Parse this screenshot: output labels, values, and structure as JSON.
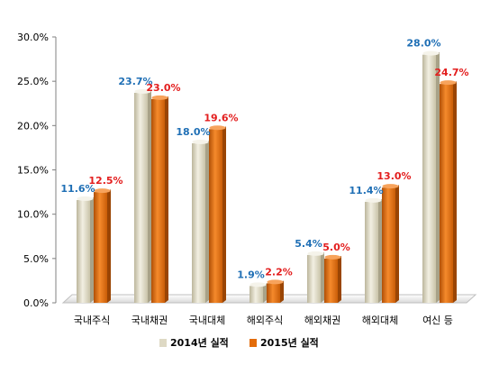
{
  "chart_data": {
    "type": "bar",
    "categories": [
      "국내주식",
      "국내채권",
      "국내대체",
      "해외주식",
      "해외채권",
      "해외대체",
      "여신 등"
    ],
    "series": [
      {
        "name": "2014년 실적",
        "values": [
          11.6,
          23.7,
          18.0,
          1.9,
          5.4,
          11.4,
          28.0
        ],
        "labels": [
          "11.6%",
          "23.7%",
          "18.0%",
          "1.9%",
          "5.4%",
          "11.4%",
          "28.0%"
        ],
        "color": "#ded9c4",
        "label_color": "#1f6fb5"
      },
      {
        "name": "2015년 실적",
        "values": [
          12.5,
          23.0,
          19.6,
          2.2,
          5.0,
          13.0,
          24.7
        ],
        "labels": [
          "12.5%",
          "23.0%",
          "19.6%",
          "2.2%",
          "5.0%",
          "13.0%",
          "24.7%"
        ],
        "color": "#e36c0a",
        "label_color": "#e31e1e"
      }
    ],
    "ylim": [
      0,
      30
    ],
    "yticks": [
      "0.0%",
      "5.0%",
      "10.0%",
      "15.0%",
      "20.0%",
      "25.0%",
      "30.0%"
    ],
    "ytick_values": [
      0,
      5,
      10,
      15,
      20,
      25,
      30
    ],
    "grid": false,
    "legend_position": "bottom"
  }
}
